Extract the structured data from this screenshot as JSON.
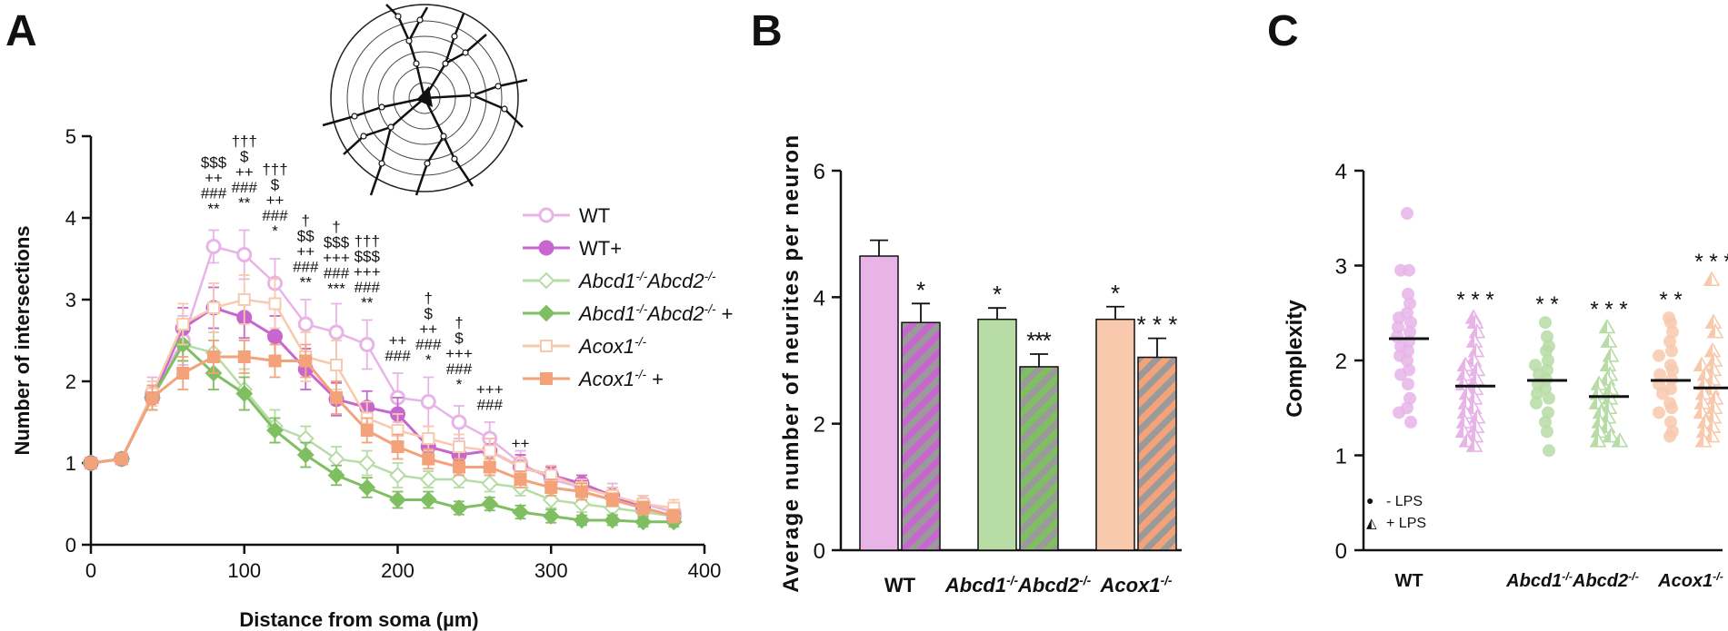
{
  "colors": {
    "wt_light": "#e8b4e8",
    "wt_dark": "#c766cf",
    "abcd_light": "#b7dca5",
    "abcd_dark": "#7fbf62",
    "acox_light": "#f8c9ad",
    "acox_dark": "#f3a27a",
    "hatch": "#9a9a9a"
  },
  "chart_data": [
    {
      "id": "A",
      "type": "line",
      "panel_letter": "A",
      "xlabel": "Distance from soma (µm)",
      "ylabel": "Number of intersections",
      "xlim": [
        0,
        400
      ],
      "ylim": [
        0,
        5
      ],
      "xticks": [
        0,
        100,
        200,
        300,
        400
      ],
      "yticks": [
        0,
        1,
        2,
        3,
        4,
        5
      ],
      "x": [
        0,
        20,
        40,
        60,
        80,
        100,
        120,
        140,
        160,
        180,
        200,
        220,
        240,
        260,
        280,
        300,
        320,
        340,
        360,
        380
      ],
      "series": [
        {
          "name": "WT",
          "legend": "WT",
          "legend_sup": "",
          "legend_suffix": "",
          "marker": "circle",
          "filled": false,
          "color": "#e8b4e8",
          "values": [
            1.0,
            1.05,
            1.85,
            2.5,
            3.65,
            3.55,
            3.2,
            2.7,
            2.6,
            2.45,
            1.8,
            1.75,
            1.5,
            1.3,
            1.0,
            0.8,
            0.7,
            0.6,
            0.5,
            0.4
          ],
          "errors": [
            0.05,
            0.05,
            0.2,
            0.3,
            0.2,
            0.3,
            0.3,
            0.3,
            0.35,
            0.3,
            0.3,
            0.3,
            0.2,
            0.2,
            0.15,
            0.15,
            0.15,
            0.15,
            0.1,
            0.1
          ]
        },
        {
          "name": "WT+",
          "legend": "WT+",
          "legend_sup": "",
          "legend_suffix": "",
          "marker": "circle",
          "filled": true,
          "color": "#c766cf",
          "values": [
            1.0,
            1.05,
            1.8,
            2.65,
            2.9,
            2.78,
            2.55,
            2.15,
            1.78,
            1.68,
            1.6,
            1.2,
            1.1,
            1.15,
            0.95,
            0.85,
            0.75,
            0.6,
            0.45,
            0.35
          ],
          "errors": [
            0.05,
            0.05,
            0.15,
            0.25,
            0.25,
            0.25,
            0.25,
            0.25,
            0.2,
            0.2,
            0.2,
            0.15,
            0.15,
            0.15,
            0.15,
            0.1,
            0.1,
            0.1,
            0.1,
            0.1
          ]
        },
        {
          "name": "Abcd1-/-Abcd2-/-",
          "legend": "Abcd1",
          "legend_sup": "-/-",
          "legend_b": "Abcd2",
          "legend_sup_b": "-/-",
          "legend_suffix": "",
          "marker": "diamond",
          "filled": false,
          "color": "#b7dca5",
          "values": [
            1.0,
            1.05,
            1.8,
            2.45,
            2.35,
            1.9,
            1.45,
            1.3,
            1.05,
            1.0,
            0.85,
            0.8,
            0.8,
            0.75,
            0.7,
            0.55,
            0.5,
            0.45,
            0.4,
            0.35
          ],
          "errors": [
            0.05,
            0.05,
            0.15,
            0.2,
            0.25,
            0.25,
            0.2,
            0.15,
            0.15,
            0.15,
            0.15,
            0.1,
            0.1,
            0.1,
            0.1,
            0.1,
            0.1,
            0.08,
            0.08,
            0.08
          ]
        },
        {
          "name": "Abcd1-/-Abcd2-/- +",
          "legend": "Abcd1",
          "legend_sup": "-/-",
          "legend_b": "Abcd2",
          "legend_sup_b": "-/-",
          "legend_suffix": " +",
          "marker": "diamond",
          "filled": true,
          "color": "#7fbf62",
          "values": [
            1.0,
            1.05,
            1.8,
            2.45,
            2.1,
            1.85,
            1.4,
            1.1,
            0.85,
            0.7,
            0.55,
            0.55,
            0.45,
            0.5,
            0.4,
            0.35,
            0.3,
            0.3,
            0.28,
            0.28
          ],
          "errors": [
            0.05,
            0.05,
            0.15,
            0.2,
            0.2,
            0.2,
            0.15,
            0.15,
            0.12,
            0.12,
            0.1,
            0.1,
            0.08,
            0.08,
            0.08,
            0.08,
            0.06,
            0.06,
            0.06,
            0.06
          ]
        },
        {
          "name": "Acox1-/-",
          "legend": "Acox1",
          "legend_sup": "-/-",
          "legend_suffix": "",
          "marker": "square",
          "filled": false,
          "color": "#f8c9ad",
          "values": [
            1.0,
            1.05,
            1.85,
            2.7,
            2.9,
            3.0,
            2.95,
            2.3,
            2.2,
            1.55,
            1.4,
            1.3,
            1.2,
            1.15,
            0.95,
            0.85,
            0.7,
            0.6,
            0.5,
            0.45
          ],
          "errors": [
            0.05,
            0.05,
            0.15,
            0.25,
            0.3,
            0.3,
            0.3,
            0.3,
            0.3,
            0.2,
            0.2,
            0.15,
            0.15,
            0.15,
            0.12,
            0.12,
            0.1,
            0.1,
            0.1,
            0.1
          ]
        },
        {
          "name": "Acox1-/- +",
          "legend": "Acox1",
          "legend_sup": "-/-",
          "legend_suffix": " +",
          "marker": "square",
          "filled": true,
          "color": "#f3a27a",
          "values": [
            1.0,
            1.05,
            1.8,
            2.1,
            2.3,
            2.3,
            2.25,
            2.25,
            1.8,
            1.4,
            1.2,
            1.05,
            0.95,
            0.95,
            0.8,
            0.7,
            0.65,
            0.55,
            0.45,
            0.35
          ],
          "errors": [
            0.05,
            0.05,
            0.15,
            0.2,
            0.2,
            0.2,
            0.2,
            0.2,
            0.2,
            0.15,
            0.15,
            0.12,
            0.1,
            0.1,
            0.1,
            0.1,
            0.1,
            0.08,
            0.08,
            0.08
          ]
        }
      ],
      "annotations": [
        {
          "x": 80,
          "lines": [
            "$$$",
            "++",
            "###",
            "**"
          ]
        },
        {
          "x": 100,
          "lines": [
            "†††",
            "$",
            "++",
            "###",
            "**"
          ]
        },
        {
          "x": 120,
          "lines": [
            "†††",
            "$",
            "++",
            "###",
            "*"
          ]
        },
        {
          "x": 140,
          "lines": [
            "†",
            "$$",
            "++",
            "###",
            "**"
          ]
        },
        {
          "x": 160,
          "lines": [
            "†",
            "$$$",
            "+++",
            "###",
            "***"
          ]
        },
        {
          "x": 180,
          "lines": [
            "†††",
            "$$$",
            "+++",
            "###",
            "**"
          ]
        },
        {
          "x": 200,
          "lines": [
            "++",
            "###"
          ]
        },
        {
          "x": 220,
          "lines": [
            "†",
            "$",
            "++",
            "###",
            "*"
          ]
        },
        {
          "x": 240,
          "lines": [
            "†",
            "$",
            "+++",
            "###",
            "*"
          ]
        },
        {
          "x": 260,
          "lines": [
            "+++",
            "###"
          ]
        },
        {
          "x": 280,
          "lines": [
            "++"
          ]
        }
      ]
    },
    {
      "id": "B",
      "type": "bar",
      "panel_letter": "B",
      "ylabel": "Average number of neurites per neuron",
      "ylim": [
        0,
        6
      ],
      "yticks": [
        0,
        2,
        4,
        6
      ],
      "groups": [
        {
          "label": "WT",
          "label_sup": "",
          "label_b": "",
          "label_sup_b": ""
        },
        {
          "label": "Abcd1",
          "label_sup": "-/-",
          "label_b": "Abcd2",
          "label_sup_b": "-/-"
        },
        {
          "label": "Acox1",
          "label_sup": "-/-",
          "label_b": "",
          "label_sup_b": ""
        }
      ],
      "series": [
        {
          "name": "- LPS",
          "values": [
            4.65,
            3.65,
            3.65
          ],
          "errors": [
            0.25,
            0.18,
            0.2
          ],
          "sig": [
            "",
            "*",
            "*"
          ]
        },
        {
          "name": "+ LPS",
          "values": [
            3.6,
            2.9,
            3.05
          ],
          "errors": [
            0.3,
            0.2,
            0.3
          ],
          "sig": [
            "*",
            "* *",
            "* * *"
          ]
        }
      ],
      "extra_sig": [
        {
          "group": 1,
          "text": "*"
        }
      ]
    },
    {
      "id": "C",
      "type": "scatter",
      "panel_letter": "C",
      "ylabel": "Complexity",
      "ylim": [
        0,
        4
      ],
      "yticks": [
        0,
        1,
        2,
        3,
        4
      ],
      "groups": [
        {
          "label": "WT",
          "label_sup": "",
          "label_b": "",
          "label_sup_b": ""
        },
        {
          "label": "Abcd1",
          "label_sup": "-/-",
          "label_b": "Abcd2",
          "label_sup_b": "-/-"
        },
        {
          "label": "Acox1",
          "label_sup": "-/-",
          "label_b": "",
          "label_sup_b": ""
        }
      ],
      "series": [
        {
          "name": "WT - LPS",
          "group": 0,
          "lps": false,
          "mean": 2.23,
          "sig": "",
          "points": [
            3.55,
            2.95,
            2.95,
            2.7,
            2.6,
            2.5,
            2.45,
            2.4,
            2.35,
            2.3,
            2.25,
            2.2,
            2.15,
            2.1,
            2.05,
            2.0,
            1.9,
            1.85,
            1.75,
            1.6,
            1.5,
            1.45,
            1.35
          ]
        },
        {
          "name": "WT + LPS",
          "group": 0,
          "lps": true,
          "mean": 1.73,
          "sig": "* * *",
          "points": [
            2.45,
            2.4,
            2.3,
            2.2,
            2.1,
            2.0,
            1.95,
            1.9,
            1.85,
            1.8,
            1.75,
            1.7,
            1.65,
            1.6,
            1.55,
            1.5,
            1.45,
            1.4,
            1.35,
            1.3,
            1.25,
            1.2,
            1.15,
            1.1
          ]
        },
        {
          "name": "Abcd - LPS",
          "group": 1,
          "lps": false,
          "mean": 1.79,
          "sig": "* *",
          "points": [
            2.4,
            2.25,
            2.15,
            2.1,
            2.0,
            1.95,
            1.9,
            1.85,
            1.8,
            1.75,
            1.7,
            1.65,
            1.6,
            1.55,
            1.45,
            1.35,
            1.25,
            1.05
          ]
        },
        {
          "name": "Abcd + LPS",
          "group": 1,
          "lps": true,
          "mean": 1.62,
          "sig": "* * *",
          "points": [
            2.35,
            2.2,
            2.05,
            1.95,
            1.85,
            1.8,
            1.75,
            1.7,
            1.65,
            1.6,
            1.55,
            1.5,
            1.45,
            1.4,
            1.35,
            1.3,
            1.25,
            1.2,
            1.15,
            1.15
          ]
        },
        {
          "name": "Acox - LPS",
          "group": 2,
          "lps": false,
          "mean": 1.79,
          "sig": "* *",
          "points": [
            2.45,
            2.4,
            2.3,
            2.2,
            2.1,
            2.05,
            1.95,
            1.9,
            1.85,
            1.8,
            1.75,
            1.7,
            1.65,
            1.55,
            1.5,
            1.45,
            1.35,
            1.25,
            1.2
          ]
        },
        {
          "name": "Acox + LPS",
          "group": 2,
          "lps": true,
          "mean": 1.71,
          "sig": "* * *",
          "points": [
            2.85,
            2.4,
            2.3,
            2.1,
            2.0,
            1.95,
            1.9,
            1.85,
            1.8,
            1.75,
            1.7,
            1.65,
            1.6,
            1.55,
            1.5,
            1.45,
            1.4,
            1.35,
            1.3,
            1.25,
            1.2,
            1.15
          ]
        }
      ],
      "legend": [
        {
          "symbol": "●",
          "label": "- LPS"
        },
        {
          "symbol": "◭",
          "label": "+ LPS"
        }
      ]
    }
  ]
}
